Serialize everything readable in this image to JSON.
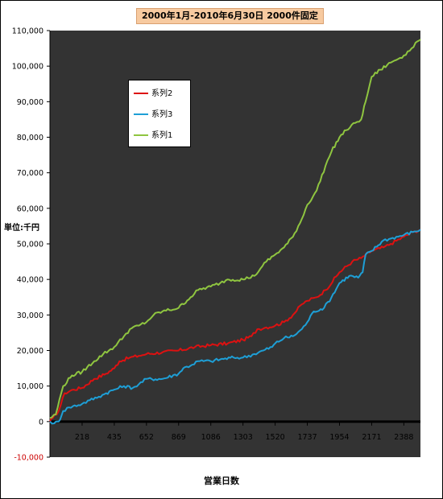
{
  "chart_data": {
    "type": "line",
    "title": "2000年1月-2010年6月30日 2000件固定",
    "xlabel": "営業日数",
    "ylabel": "単位:千円",
    "xlim": [
      1,
      2500
    ],
    "ylim": [
      -10000,
      110000
    ],
    "yticks": [
      {
        "value": 110000,
        "label": "110,000"
      },
      {
        "value": 100000,
        "label": "100,000"
      },
      {
        "value": 90000,
        "label": "90,000"
      },
      {
        "value": 80000,
        "label": "80,000"
      },
      {
        "value": 70000,
        "label": "70,000"
      },
      {
        "value": 60000,
        "label": "60,000"
      },
      {
        "value": 50000,
        "label": "50,000"
      },
      {
        "value": 40000,
        "label": "40,000"
      },
      {
        "value": 30000,
        "label": "30,000"
      },
      {
        "value": 20000,
        "label": "20,000"
      },
      {
        "value": 10000,
        "label": "10,000"
      },
      {
        "value": 0,
        "label": "0"
      },
      {
        "value": -10000,
        "label": "-10,000"
      }
    ],
    "xticks": [
      1,
      218,
      435,
      652,
      869,
      1086,
      1303,
      1520,
      1737,
      1954,
      2171,
      2388
    ],
    "grid": false,
    "legend_position": "upper-left",
    "background": "#333333",
    "negative_tick_color": "#cc0000",
    "series": [
      {
        "name": "系列2",
        "color": "#dd1111",
        "points": [
          [
            1,
            0
          ],
          [
            20,
            1000
          ],
          [
            60,
            3000
          ],
          [
            100,
            8000
          ],
          [
            160,
            9000
          ],
          [
            218,
            9500
          ],
          [
            300,
            12000
          ],
          [
            380,
            13500
          ],
          [
            435,
            15000
          ],
          [
            470,
            17000
          ],
          [
            540,
            18000
          ],
          [
            600,
            18500
          ],
          [
            652,
            19000
          ],
          [
            760,
            19500
          ],
          [
            869,
            20000
          ],
          [
            980,
            21000
          ],
          [
            1086,
            21500
          ],
          [
            1200,
            22000
          ],
          [
            1303,
            23000
          ],
          [
            1360,
            24000
          ],
          [
            1400,
            26000
          ],
          [
            1460,
            26500
          ],
          [
            1520,
            27000
          ],
          [
            1580,
            28000
          ],
          [
            1640,
            30000
          ],
          [
            1700,
            33000
          ],
          [
            1737,
            34000
          ],
          [
            1800,
            35000
          ],
          [
            1860,
            37000
          ],
          [
            1954,
            42000
          ],
          [
            2040,
            45000
          ],
          [
            2100,
            46000
          ],
          [
            2171,
            48000
          ],
          [
            2250,
            49000
          ],
          [
            2300,
            50000
          ],
          [
            2388,
            52000
          ],
          [
            2460,
            53500
          ],
          [
            2500,
            54000
          ]
        ]
      },
      {
        "name": "系列3",
        "color": "#1e9fd6",
        "points": [
          [
            1,
            0
          ],
          [
            30,
            -500
          ],
          [
            60,
            0
          ],
          [
            90,
            3000
          ],
          [
            130,
            4000
          ],
          [
            218,
            5000
          ],
          [
            270,
            6000
          ],
          [
            330,
            7000
          ],
          [
            380,
            8000
          ],
          [
            435,
            9000
          ],
          [
            500,
            10000
          ],
          [
            560,
            9500
          ],
          [
            600,
            10500
          ],
          [
            652,
            12000
          ],
          [
            760,
            12000
          ],
          [
            869,
            13500
          ],
          [
            900,
            15000
          ],
          [
            960,
            16000
          ],
          [
            1000,
            17000
          ],
          [
            1086,
            17000
          ],
          [
            1150,
            17500
          ],
          [
            1240,
            18000
          ],
          [
            1303,
            18000
          ],
          [
            1380,
            19000
          ],
          [
            1440,
            20000
          ],
          [
            1500,
            21000
          ],
          [
            1520,
            22000
          ],
          [
            1580,
            23500
          ],
          [
            1640,
            24000
          ],
          [
            1700,
            26000
          ],
          [
            1737,
            28000
          ],
          [
            1780,
            31000
          ],
          [
            1850,
            32000
          ],
          [
            1900,
            35000
          ],
          [
            1954,
            39000
          ],
          [
            2020,
            41000
          ],
          [
            2080,
            40500
          ],
          [
            2110,
            42000
          ],
          [
            2130,
            47000
          ],
          [
            2171,
            48000
          ],
          [
            2250,
            51000
          ],
          [
            2300,
            51500
          ],
          [
            2388,
            52500
          ],
          [
            2460,
            53500
          ],
          [
            2500,
            54000
          ]
        ]
      },
      {
        "name": "系列1",
        "color": "#8fc540",
        "points": [
          [
            1,
            1000
          ],
          [
            40,
            2000
          ],
          [
            90,
            10000
          ],
          [
            150,
            13000
          ],
          [
            218,
            14000
          ],
          [
            300,
            17000
          ],
          [
            360,
            19000
          ],
          [
            435,
            21000
          ],
          [
            500,
            24000
          ],
          [
            540,
            26000
          ],
          [
            600,
            27000
          ],
          [
            652,
            28000
          ],
          [
            700,
            30000
          ],
          [
            760,
            31000
          ],
          [
            869,
            32000
          ],
          [
            950,
            35000
          ],
          [
            1000,
            37000
          ],
          [
            1086,
            38000
          ],
          [
            1150,
            39000
          ],
          [
            1200,
            40000
          ],
          [
            1303,
            40000
          ],
          [
            1380,
            41000
          ],
          [
            1420,
            43000
          ],
          [
            1460,
            45000
          ],
          [
            1520,
            47000
          ],
          [
            1580,
            49000
          ],
          [
            1640,
            52000
          ],
          [
            1700,
            57000
          ],
          [
            1737,
            61000
          ],
          [
            1800,
            65000
          ],
          [
            1860,
            72000
          ],
          [
            1900,
            76000
          ],
          [
            1954,
            80000
          ],
          [
            2000,
            82000
          ],
          [
            2060,
            84000
          ],
          [
            2100,
            85000
          ],
          [
            2130,
            90000
          ],
          [
            2171,
            97000
          ],
          [
            2230,
            99000
          ],
          [
            2300,
            101000
          ],
          [
            2388,
            103000
          ],
          [
            2440,
            105000
          ],
          [
            2480,
            107000
          ],
          [
            2500,
            107500
          ]
        ]
      }
    ]
  }
}
